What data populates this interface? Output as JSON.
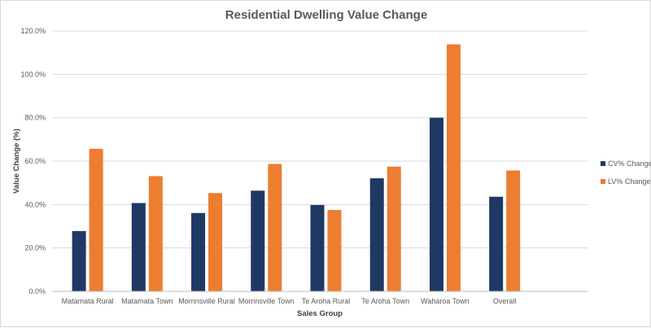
{
  "chart_data": {
    "type": "bar",
    "title": "Residential Dwelling Value Change",
    "xlabel": "Sales Group",
    "ylabel": "Value Change (%)",
    "categories": [
      "Matamata Rural",
      "Matamata Town",
      "Morrinsville Rural",
      "Morrinsville Town",
      "Te Aroha Rural",
      "Te Aroha Town",
      "Waharoa Town",
      "Overall"
    ],
    "series": [
      {
        "name": "CV% Change",
        "color": "#1f3864",
        "values": [
          27.8,
          40.7,
          36.1,
          46.4,
          39.8,
          52.1,
          80.0,
          43.6
        ]
      },
      {
        "name": "LV% Change",
        "color": "#ed7d31",
        "values": [
          65.7,
          53.1,
          45.3,
          58.7,
          37.5,
          57.5,
          113.8,
          55.7
        ]
      }
    ],
    "ylim": [
      0,
      120
    ],
    "yticks": [
      0,
      20,
      40,
      60,
      80,
      100,
      120
    ],
    "ytick_labels": [
      "0.0%",
      "20.0%",
      "40.0%",
      "60.0%",
      "80.0%",
      "100.0%",
      "120.0%"
    ],
    "grid": true,
    "legend_position": "right"
  }
}
